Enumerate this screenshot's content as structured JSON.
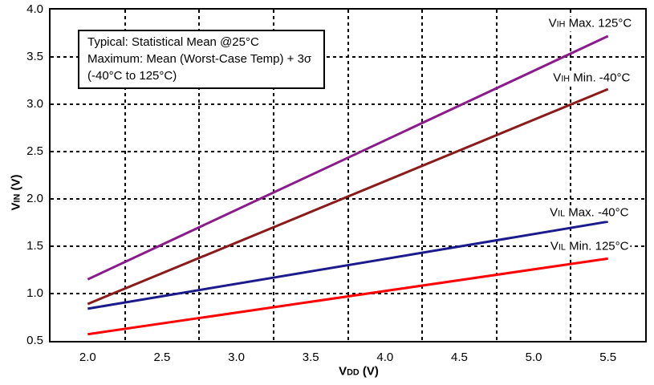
{
  "chart_data": {
    "type": "line",
    "title": "",
    "xlabel": "VDD (V)",
    "ylabel": "VIN (V)",
    "xlim": [
      1.75,
      5.75
    ],
    "ylim": [
      0.5,
      4.0
    ],
    "x_ticks": [
      2.0,
      2.5,
      3.0,
      3.5,
      4.0,
      4.5,
      5.0,
      5.5
    ],
    "y_ticks": [
      0.5,
      1.0,
      1.5,
      2.0,
      2.5,
      3.0,
      3.5,
      4.0
    ],
    "x_gridlines": [
      2.25,
      2.75,
      3.25,
      3.75,
      4.25,
      4.75,
      5.25
    ],
    "y_gridlines": [
      1.0,
      1.5,
      2.0,
      2.5,
      3.0,
      3.5
    ],
    "grid_style": "dashed",
    "legend_position": "inline-right",
    "border_color": "#000000",
    "background_color": "#FFFFFF",
    "series": [
      {
        "name": "VIH Max. 125°C",
        "color": "#8B1A8B",
        "x": [
          2.0,
          5.5
        ],
        "y": [
          1.15,
          3.72
        ],
        "label_anchor": {
          "x": 5.67,
          "y": 3.85
        }
      },
      {
        "name": "VIH Min. -40°C",
        "color": "#8B1A1A",
        "x": [
          2.0,
          5.5
        ],
        "y": [
          0.89,
          3.16
        ],
        "label_anchor": {
          "x": 5.66,
          "y": 3.27
        }
      },
      {
        "name": "VIL Max. -40°C",
        "color": "#1A1A8C",
        "x": [
          2.0,
          5.5
        ],
        "y": [
          0.84,
          1.76
        ],
        "label_anchor": {
          "x": 5.65,
          "y": 1.85
        }
      },
      {
        "name": "VIL Min. 125°C",
        "color": "#FF0000",
        "x": [
          2.0,
          5.5
        ],
        "y": [
          0.57,
          1.37
        ],
        "label_anchor": {
          "x": 5.65,
          "y": 1.49
        }
      }
    ],
    "annotation": {
      "lines": [
        "Typical: Statistical Mean @25°C",
        "Maximum: Mean (Worst-Case Temp) + 3σ",
        "(-40°C to 125°C)"
      ]
    }
  }
}
